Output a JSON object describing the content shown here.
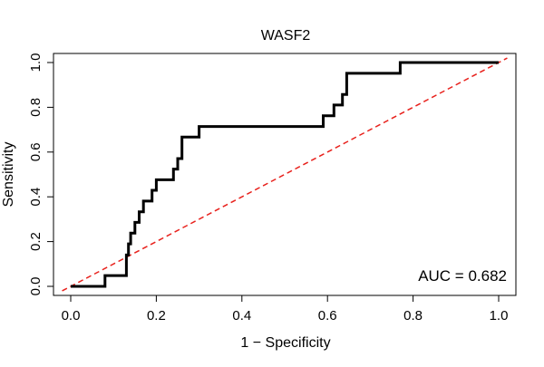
{
  "chart_data": {
    "type": "line",
    "title": "WASF2",
    "xlabel": "1 − Specificity",
    "ylabel": "Sensitivity",
    "xlim": [
      0.0,
      1.0
    ],
    "ylim": [
      0.0,
      1.0
    ],
    "x_ticks": [
      {
        "value": 0.0,
        "label": "0.0"
      },
      {
        "value": 0.2,
        "label": "0.2"
      },
      {
        "value": 0.4,
        "label": "0.4"
      },
      {
        "value": 0.6,
        "label": "0.6"
      },
      {
        "value": 0.8,
        "label": "0.8"
      },
      {
        "value": 1.0,
        "label": "1.0"
      }
    ],
    "y_ticks": [
      {
        "value": 0.0,
        "label": "0.0"
      },
      {
        "value": 0.2,
        "label": "0.2"
      },
      {
        "value": 0.4,
        "label": "0.4"
      },
      {
        "value": 0.6,
        "label": "0.6"
      },
      {
        "value": 0.8,
        "label": "0.8"
      },
      {
        "value": 1.0,
        "label": "1.0"
      }
    ],
    "grid": false,
    "annotation": "AUC = 0.682",
    "colors": {
      "roc": "#000000",
      "reference": "#e8211c"
    },
    "series": [
      {
        "x": [
          0.0,
          0.08,
          0.08,
          0.13,
          0.13,
          0.135,
          0.135,
          0.14,
          0.14,
          0.15,
          0.15,
          0.16,
          0.16,
          0.17,
          0.17,
          0.19,
          0.19,
          0.2,
          0.2,
          0.24,
          0.24,
          0.25,
          0.25,
          0.26,
          0.26,
          0.3,
          0.3,
          0.59,
          0.59,
          0.615,
          0.615,
          0.635,
          0.635,
          0.645,
          0.645,
          0.77,
          0.77,
          1.0
        ],
        "y": [
          0.0,
          0.0,
          0.048,
          0.048,
          0.14,
          0.14,
          0.19,
          0.19,
          0.238,
          0.238,
          0.286,
          0.286,
          0.333,
          0.333,
          0.381,
          0.381,
          0.429,
          0.429,
          0.476,
          0.476,
          0.524,
          0.524,
          0.571,
          0.571,
          0.667,
          0.667,
          0.714,
          0.714,
          0.762,
          0.762,
          0.81,
          0.81,
          0.857,
          0.857,
          0.952,
          0.952,
          1.0,
          1.0
        ]
      },
      {
        "x": [
          0.0,
          1.0
        ],
        "y": [
          0.0,
          1.0
        ]
      }
    ]
  }
}
